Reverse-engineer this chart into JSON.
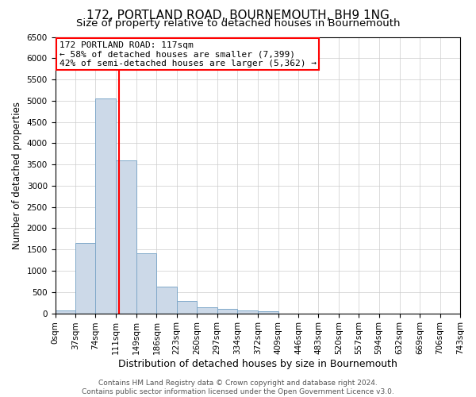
{
  "title": "172, PORTLAND ROAD, BOURNEMOUTH, BH9 1NG",
  "subtitle": "Size of property relative to detached houses in Bournemouth",
  "xlabel": "Distribution of detached houses by size in Bournemouth",
  "ylabel": "Number of detached properties",
  "footer_line1": "Contains HM Land Registry data © Crown copyright and database right 2024.",
  "footer_line2": "Contains public sector information licensed under the Open Government Licence v3.0.",
  "bar_edges": [
    0,
    37,
    74,
    111,
    149,
    186,
    223,
    260,
    297,
    334,
    372,
    409,
    446,
    483,
    520,
    557,
    594,
    632,
    669,
    706,
    743
  ],
  "bar_heights": [
    75,
    1650,
    5060,
    3590,
    1410,
    620,
    290,
    145,
    110,
    75,
    55,
    0,
    0,
    0,
    0,
    0,
    0,
    0,
    0,
    0
  ],
  "bar_color": "#ccd9e8",
  "bar_edgecolor": "#7fa8c9",
  "grid_color": "#cccccc",
  "vline_x": 117,
  "vline_color": "red",
  "annotation_line1": "172 PORTLAND ROAD: 117sqm",
  "annotation_line2": "← 58% of detached houses are smaller (7,399)",
  "annotation_line3": "42% of semi-detached houses are larger (5,362) →",
  "ylim": [
    0,
    6500
  ],
  "yticks": [
    0,
    500,
    1000,
    1500,
    2000,
    2500,
    3000,
    3500,
    4000,
    4500,
    5000,
    5500,
    6000,
    6500
  ],
  "title_fontsize": 11,
  "subtitle_fontsize": 9.5,
  "xlabel_fontsize": 9,
  "ylabel_fontsize": 8.5,
  "tick_fontsize": 7.5,
  "annotation_fontsize": 8,
  "footer_fontsize": 6.5
}
